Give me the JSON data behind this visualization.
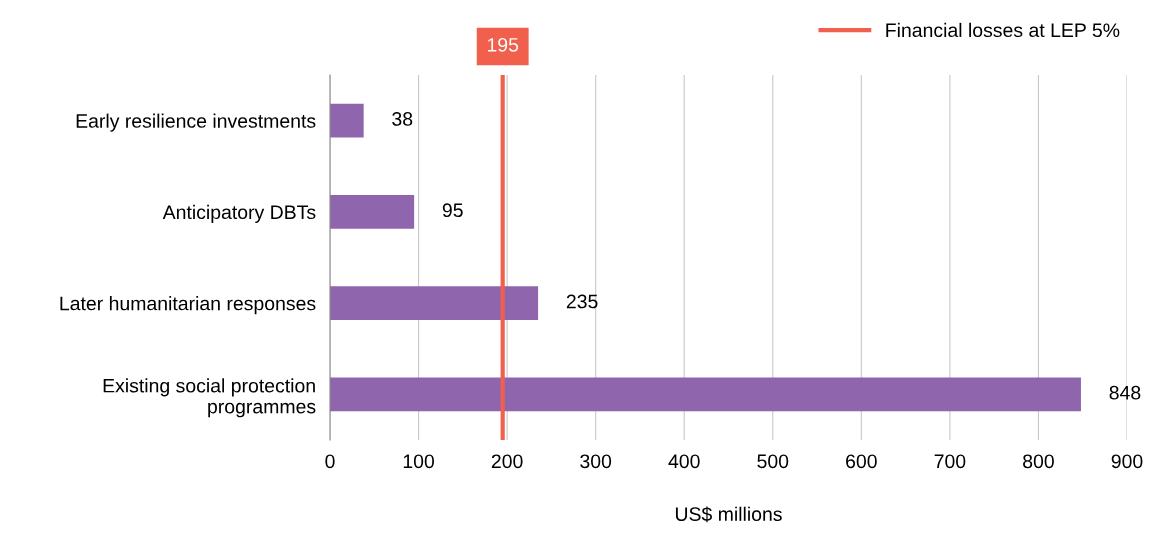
{
  "chart_data": {
    "type": "bar",
    "orientation": "horizontal",
    "categories": [
      "Early resilience investments",
      "Anticipatory DBTs",
      "Later humanitarian responses",
      "Existing social protection\nprogrammes"
    ],
    "values": [
      38,
      95,
      235,
      848
    ],
    "color": "#8f65ad",
    "data_labels": true,
    "xlim": [
      0,
      900
    ],
    "xticks": [
      0,
      100,
      200,
      300,
      400,
      500,
      600,
      700,
      800,
      900
    ],
    "grid": "x",
    "xlabel": "US$ millions",
    "ref_lines": [
      {
        "axis": "x",
        "value": 195,
        "label": "Financial losses at LEP 5%",
        "color": "#f0604c"
      }
    ],
    "annotations": [
      "195"
    ],
    "legend": "top right"
  }
}
